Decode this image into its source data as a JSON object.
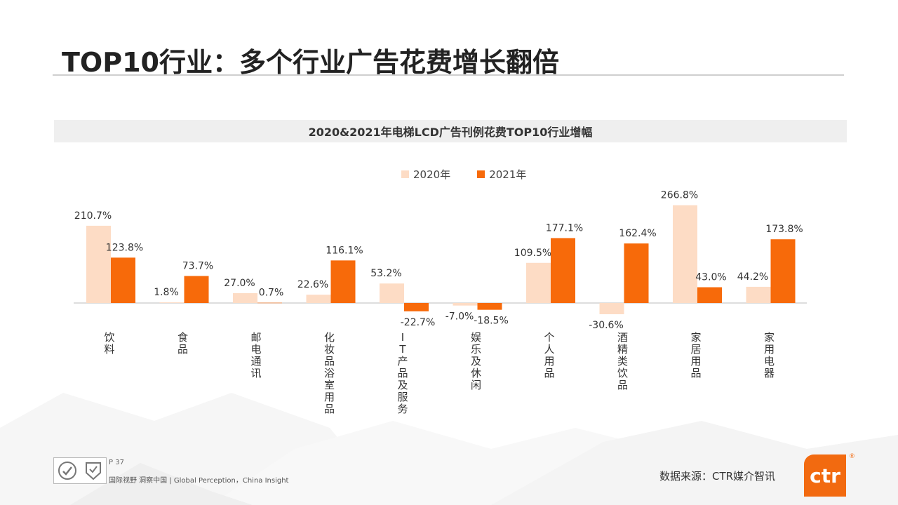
{
  "page": {
    "title": "TOP10行业：多个行业广告花费增长翻倍",
    "page_number": "P 37",
    "slogan": "国际视野  洞察中国 |  Global Perception，China Insight",
    "source": "数据来源：CTR媒介智讯",
    "brand": "ctr"
  },
  "colors": {
    "series_2020": "#fddcc5",
    "series_2021": "#f76a0a",
    "axis": "#bdbdbd",
    "brand": "#f26a10"
  },
  "icons": [
    "certification-logo-icon",
    "quality-seal-icon"
  ],
  "chart_data": {
    "type": "bar",
    "title": "2020&2021年电梯LCD广告刊例花费TOP10行业增幅",
    "xlabel": "",
    "ylabel": "",
    "categories": [
      "饮料",
      "食品",
      "邮电通讯",
      "化妆品 浴室用品",
      "IT产品及服务",
      "娱乐及休闲",
      "个人用品",
      "酒精类饮品",
      "家居用品",
      "家用电器"
    ],
    "series": [
      {
        "name": "2020年",
        "values": [
          210.7,
          1.8,
          27.0,
          22.6,
          53.2,
          -7.0,
          109.5,
          -30.6,
          266.8,
          44.2
        ],
        "labels": [
          "210.7%",
          "1.8%",
          "27.0%",
          "22.6%",
          "53.2%",
          "-7.0%",
          "109.5%",
          "-30.6%",
          "266.8%",
          "44.2%"
        ]
      },
      {
        "name": "2021年",
        "values": [
          123.8,
          73.7,
          0.7,
          116.1,
          -22.7,
          -18.5,
          177.1,
          162.4,
          43.0,
          173.8
        ],
        "labels": [
          "123.8%",
          "73.7%",
          "0.7%",
          "116.1%",
          "-22.7%",
          "-18.5%",
          "177.1%",
          "162.4%",
          "43.0%",
          "173.8%"
        ]
      }
    ],
    "legend_position": "top-center",
    "grid": false
  }
}
